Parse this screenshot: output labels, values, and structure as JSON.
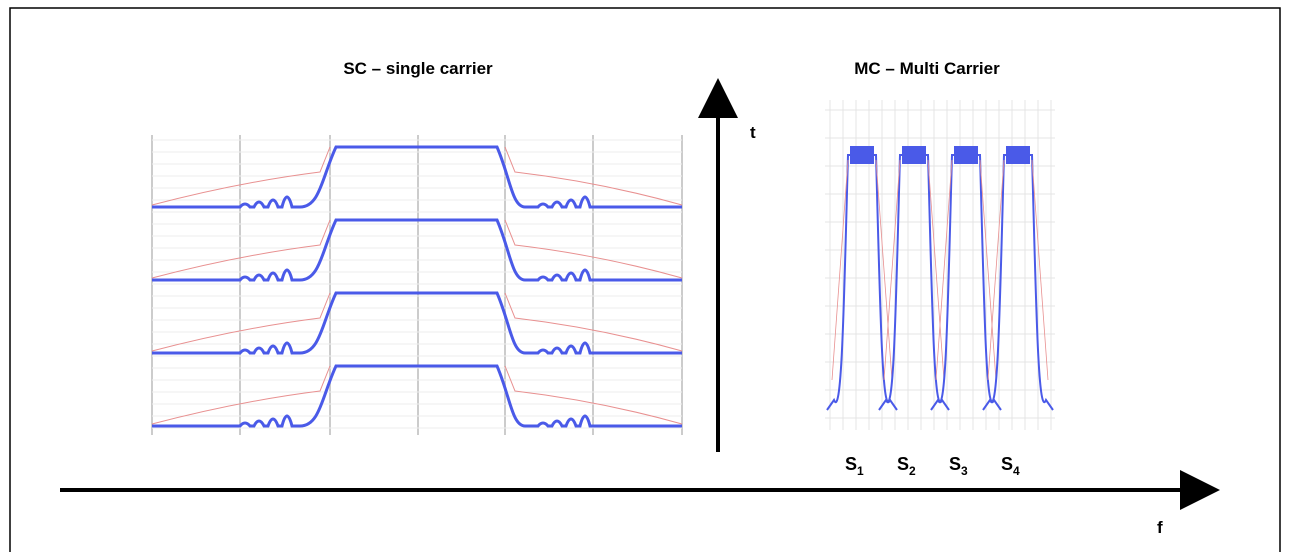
{
  "titles": {
    "single_carrier": "SC – single carrier",
    "multi_carrier": "MC – Multi Carrier"
  },
  "axes": {
    "time": "t",
    "frequency": "f"
  },
  "subcarriers": [
    {
      "letter": "S",
      "index": "1"
    },
    {
      "letter": "S",
      "index": "2"
    },
    {
      "letter": "S",
      "index": "3"
    },
    {
      "letter": "S",
      "index": "4"
    }
  ]
}
